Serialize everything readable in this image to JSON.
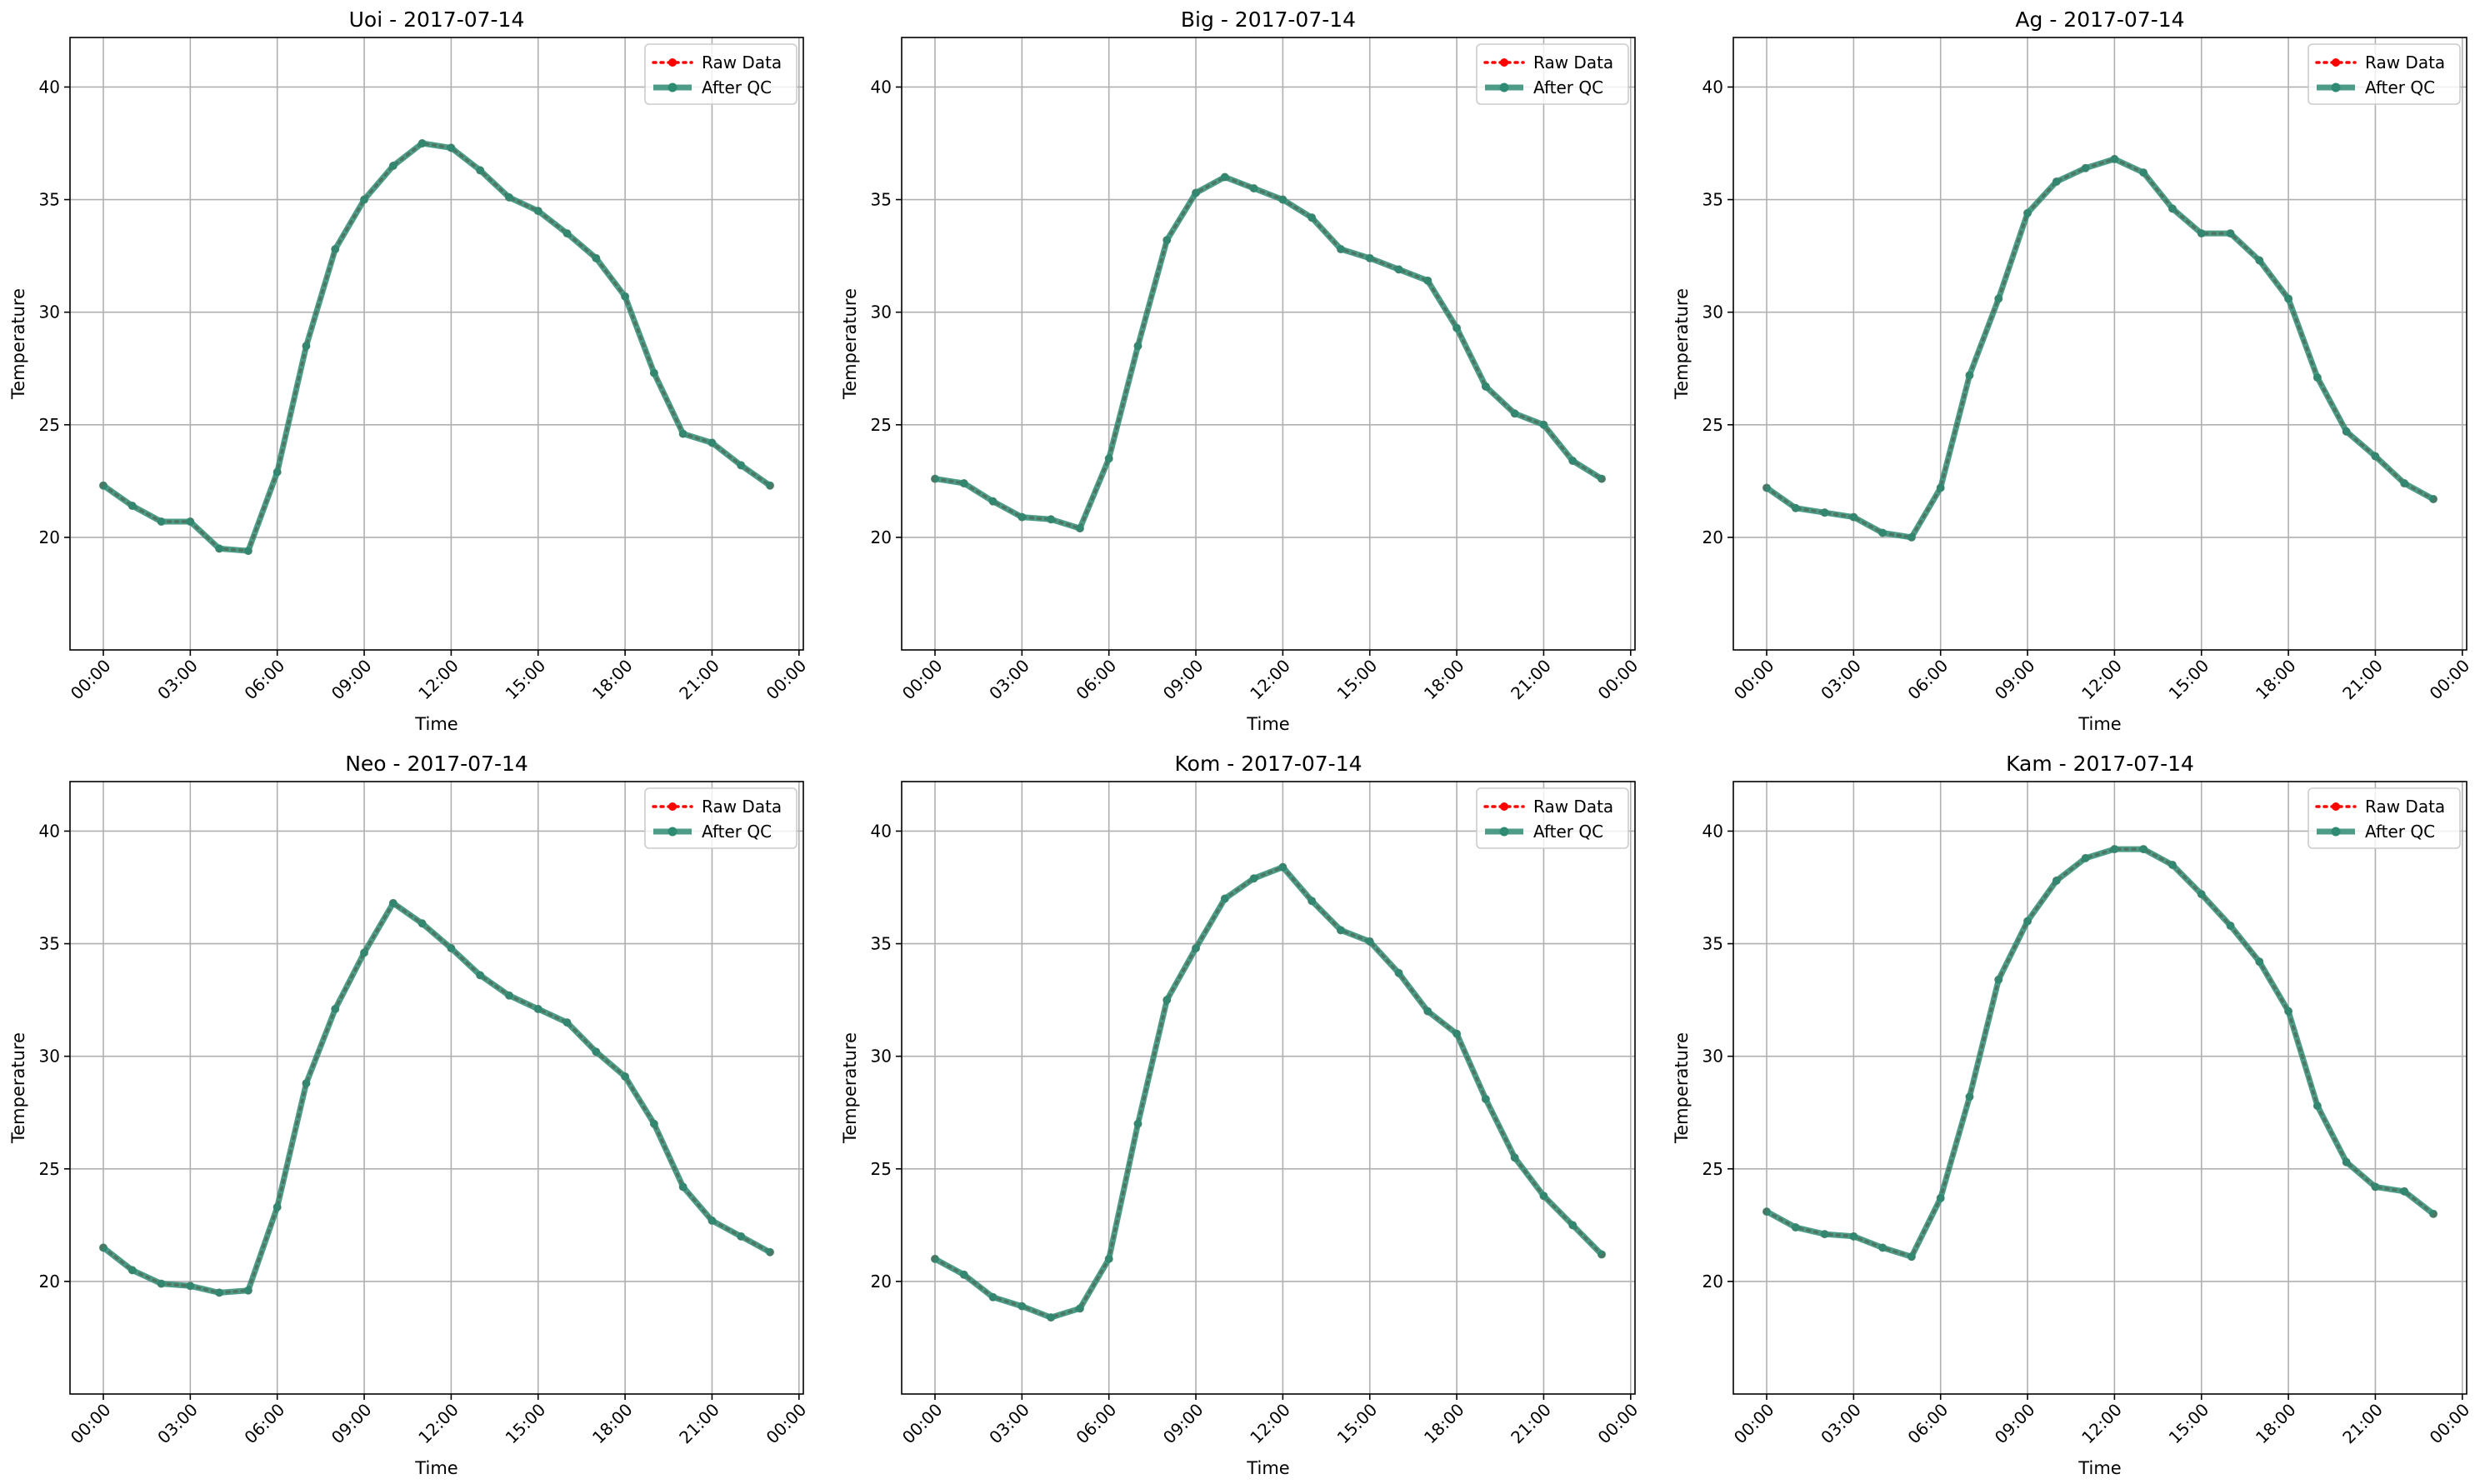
{
  "chart_data": [
    {
      "type": "line",
      "title": "Uoi - 2017-07-14",
      "xlabel": "Time",
      "ylabel": "Temperature",
      "x_hours": [
        0,
        1,
        2,
        3,
        4,
        5,
        6,
        7,
        8,
        9,
        10,
        11,
        12,
        13,
        14,
        15,
        16,
        17,
        18,
        19,
        20,
        21,
        22,
        23
      ],
      "xtick_labels": [
        "00:00",
        "03:00",
        "06:00",
        "09:00",
        "12:00",
        "15:00",
        "18:00",
        "21:00",
        "00:00"
      ],
      "xlim_hours": [
        -1.15,
        24.15
      ],
      "ylim": [
        15.0,
        42.2
      ],
      "yticks": [
        20,
        25,
        30,
        35,
        40
      ],
      "grid": true,
      "legend": "top-right",
      "series": [
        {
          "name": "Raw Data",
          "color": "#ff0000",
          "values": [
            22.3,
            21.4,
            20.7,
            20.7,
            19.5,
            19.4,
            22.9,
            28.5,
            32.8,
            35.0,
            36.5,
            37.5,
            37.3,
            36.3,
            35.1,
            34.5,
            33.5,
            32.4,
            30.7,
            27.3,
            24.6,
            24.2,
            23.2,
            22.3
          ]
        },
        {
          "name": "After QC",
          "color": "#2e8b73",
          "values": [
            22.3,
            21.4,
            20.7,
            20.7,
            19.5,
            19.4,
            22.9,
            28.5,
            32.8,
            35.0,
            36.5,
            37.5,
            37.3,
            36.3,
            35.1,
            34.5,
            33.5,
            32.4,
            30.7,
            27.3,
            24.6,
            24.2,
            23.2,
            22.3
          ]
        }
      ]
    },
    {
      "type": "line",
      "title": "Big - 2017-07-14",
      "xlabel": "Time",
      "ylabel": "Temperature",
      "x_hours": [
        0,
        1,
        2,
        3,
        4,
        5,
        6,
        7,
        8,
        9,
        10,
        11,
        12,
        13,
        14,
        15,
        16,
        17,
        18,
        19,
        20,
        21,
        22,
        23
      ],
      "xtick_labels": [
        "00:00",
        "03:00",
        "06:00",
        "09:00",
        "12:00",
        "15:00",
        "18:00",
        "21:00",
        "00:00"
      ],
      "xlim_hours": [
        -1.15,
        24.15
      ],
      "ylim": [
        15.0,
        42.2
      ],
      "yticks": [
        20,
        25,
        30,
        35,
        40
      ],
      "grid": true,
      "legend": "top-right",
      "series": [
        {
          "name": "Raw Data",
          "color": "#ff0000",
          "values": [
            22.6,
            22.4,
            21.6,
            20.9,
            20.8,
            20.4,
            23.5,
            28.5,
            33.2,
            35.3,
            36.0,
            35.5,
            35.0,
            34.2,
            32.8,
            32.4,
            31.9,
            31.4,
            29.3,
            26.7,
            25.5,
            25.0,
            23.4,
            22.6
          ]
        },
        {
          "name": "After QC",
          "color": "#2e8b73",
          "values": [
            22.6,
            22.4,
            21.6,
            20.9,
            20.8,
            20.4,
            23.5,
            28.5,
            33.2,
            35.3,
            36.0,
            35.5,
            35.0,
            34.2,
            32.8,
            32.4,
            31.9,
            31.4,
            29.3,
            26.7,
            25.5,
            25.0,
            23.4,
            22.6
          ]
        }
      ]
    },
    {
      "type": "line",
      "title": "Ag - 2017-07-14",
      "xlabel": "Time",
      "ylabel": "Temperature",
      "x_hours": [
        0,
        1,
        2,
        3,
        4,
        5,
        6,
        7,
        8,
        9,
        10,
        11,
        12,
        13,
        14,
        15,
        16,
        17,
        18,
        19,
        20,
        21,
        22,
        23
      ],
      "xtick_labels": [
        "00:00",
        "03:00",
        "06:00",
        "09:00",
        "12:00",
        "15:00",
        "18:00",
        "21:00",
        "00:00"
      ],
      "xlim_hours": [
        -1.15,
        24.15
      ],
      "ylim": [
        15.0,
        42.2
      ],
      "yticks": [
        20,
        25,
        30,
        35,
        40
      ],
      "grid": true,
      "legend": "top-right",
      "series": [
        {
          "name": "Raw Data",
          "color": "#ff0000",
          "values": [
            22.2,
            21.3,
            21.1,
            20.9,
            20.2,
            20.0,
            22.2,
            27.2,
            30.6,
            34.4,
            35.8,
            36.4,
            36.8,
            36.2,
            34.6,
            33.5,
            33.5,
            32.3,
            30.6,
            27.1,
            24.7,
            23.6,
            22.4,
            21.7
          ]
        },
        {
          "name": "After QC",
          "color": "#2e8b73",
          "values": [
            22.2,
            21.3,
            21.1,
            20.9,
            20.2,
            20.0,
            22.2,
            27.2,
            30.6,
            34.4,
            35.8,
            36.4,
            36.8,
            36.2,
            34.6,
            33.5,
            33.5,
            32.3,
            30.6,
            27.1,
            24.7,
            23.6,
            22.4,
            21.7
          ]
        }
      ]
    },
    {
      "type": "line",
      "title": "Neo - 2017-07-14",
      "xlabel": "Time",
      "ylabel": "Temperature",
      "x_hours": [
        0,
        1,
        2,
        3,
        4,
        5,
        6,
        7,
        8,
        9,
        10,
        11,
        12,
        13,
        14,
        15,
        16,
        17,
        18,
        19,
        20,
        21,
        22,
        23
      ],
      "xtick_labels": [
        "00:00",
        "03:00",
        "06:00",
        "09:00",
        "12:00",
        "15:00",
        "18:00",
        "21:00",
        "00:00"
      ],
      "xlim_hours": [
        -1.15,
        24.15
      ],
      "ylim": [
        15.0,
        42.2
      ],
      "yticks": [
        20,
        25,
        30,
        35,
        40
      ],
      "grid": true,
      "legend": "top-right",
      "series": [
        {
          "name": "Raw Data",
          "color": "#ff0000",
          "values": [
            21.5,
            20.5,
            19.9,
            19.8,
            19.5,
            19.6,
            23.3,
            28.8,
            32.1,
            34.6,
            36.8,
            35.9,
            34.8,
            33.6,
            32.7,
            32.1,
            31.5,
            30.2,
            29.1,
            27.0,
            24.2,
            22.7,
            22.0,
            21.3
          ]
        },
        {
          "name": "After QC",
          "color": "#2e8b73",
          "values": [
            21.5,
            20.5,
            19.9,
            19.8,
            19.5,
            19.6,
            23.3,
            28.8,
            32.1,
            34.6,
            36.8,
            35.9,
            34.8,
            33.6,
            32.7,
            32.1,
            31.5,
            30.2,
            29.1,
            27.0,
            24.2,
            22.7,
            22.0,
            21.3
          ]
        }
      ]
    },
    {
      "type": "line",
      "title": "Kom - 2017-07-14",
      "xlabel": "Time",
      "ylabel": "Temperature",
      "x_hours": [
        0,
        1,
        2,
        3,
        4,
        5,
        6,
        7,
        8,
        9,
        10,
        11,
        12,
        13,
        14,
        15,
        16,
        17,
        18,
        19,
        20,
        21,
        22,
        23
      ],
      "xtick_labels": [
        "00:00",
        "03:00",
        "06:00",
        "09:00",
        "12:00",
        "15:00",
        "18:00",
        "21:00",
        "00:00"
      ],
      "xlim_hours": [
        -1.15,
        24.15
      ],
      "ylim": [
        15.0,
        42.2
      ],
      "yticks": [
        20,
        25,
        30,
        35,
        40
      ],
      "grid": true,
      "legend": "top-right",
      "series": [
        {
          "name": "Raw Data",
          "color": "#ff0000",
          "values": [
            21.0,
            20.3,
            19.3,
            18.9,
            18.4,
            18.8,
            21.0,
            27.0,
            32.5,
            34.8,
            37.0,
            37.9,
            38.4,
            36.9,
            35.6,
            35.1,
            33.7,
            32.0,
            31.0,
            28.1,
            25.5,
            23.8,
            22.5,
            21.2
          ]
        },
        {
          "name": "After QC",
          "color": "#2e8b73",
          "values": [
            21.0,
            20.3,
            19.3,
            18.9,
            18.4,
            18.8,
            21.0,
            27.0,
            32.5,
            34.8,
            37.0,
            37.9,
            38.4,
            36.9,
            35.6,
            35.1,
            33.7,
            32.0,
            31.0,
            28.1,
            25.5,
            23.8,
            22.5,
            21.2
          ]
        }
      ]
    },
    {
      "type": "line",
      "title": "Kam - 2017-07-14",
      "xlabel": "Time",
      "ylabel": "Temperature",
      "x_hours": [
        0,
        1,
        2,
        3,
        4,
        5,
        6,
        7,
        8,
        9,
        10,
        11,
        12,
        13,
        14,
        15,
        16,
        17,
        18,
        19,
        20,
        21,
        22,
        23
      ],
      "xtick_labels": [
        "00:00",
        "03:00",
        "06:00",
        "09:00",
        "12:00",
        "15:00",
        "18:00",
        "21:00",
        "00:00"
      ],
      "xlim_hours": [
        -1.15,
        24.15
      ],
      "ylim": [
        15.0,
        42.2
      ],
      "yticks": [
        20,
        25,
        30,
        35,
        40
      ],
      "grid": true,
      "legend": "top-right",
      "series": [
        {
          "name": "Raw Data",
          "color": "#ff0000",
          "values": [
            23.1,
            22.4,
            22.1,
            22.0,
            21.5,
            21.1,
            23.7,
            28.2,
            33.4,
            36.0,
            37.8,
            38.8,
            39.2,
            39.2,
            38.5,
            37.2,
            35.8,
            34.2,
            32.0,
            27.8,
            25.3,
            24.2,
            24.0,
            23.0
          ]
        },
        {
          "name": "After QC",
          "color": "#2e8b73",
          "values": [
            23.1,
            22.4,
            22.1,
            22.0,
            21.5,
            21.1,
            23.7,
            28.2,
            33.4,
            36.0,
            37.8,
            38.8,
            39.2,
            39.2,
            38.5,
            37.2,
            35.8,
            34.2,
            32.0,
            27.8,
            25.3,
            24.2,
            24.0,
            23.0
          ]
        }
      ]
    }
  ]
}
